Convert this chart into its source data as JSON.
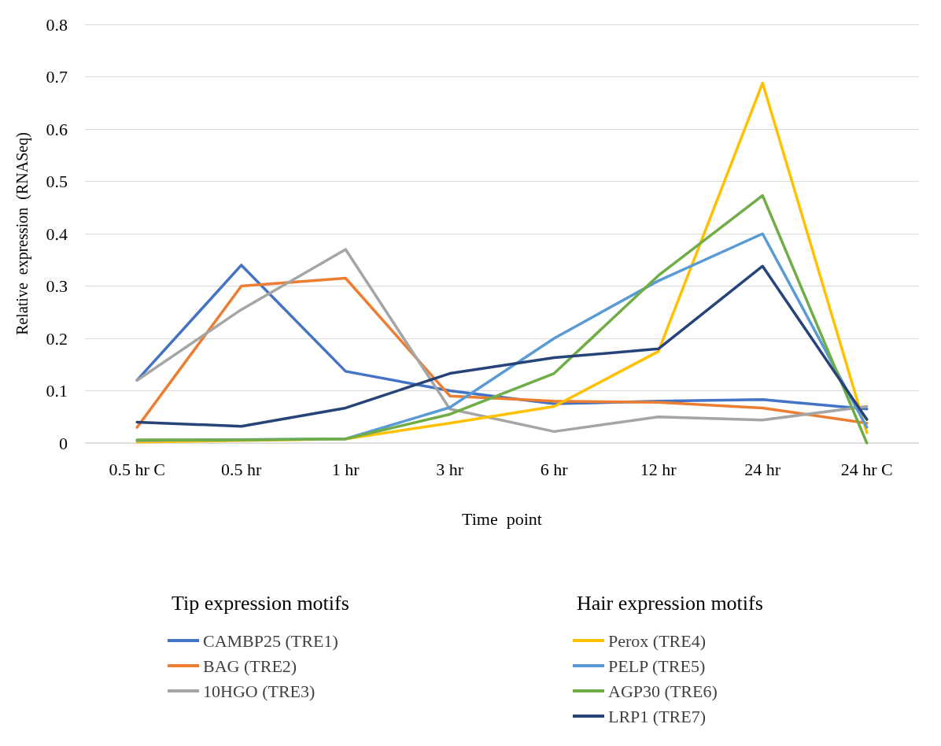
{
  "chart_data": {
    "type": "line",
    "xlabel": "Time  point",
    "ylabel": "Relative  expression  (RNASeq)",
    "categories": [
      "0.5 hr C",
      "0.5 hr",
      "1 hr",
      "3 hr",
      "6 hr",
      "12 hr",
      "24 hr",
      "24 hr C"
    ],
    "series": [
      {
        "name": "CAMBP25 (TRE1)",
        "color": "#4472c4",
        "values": [
          0.12,
          0.34,
          0.137,
          0.1,
          0.075,
          0.08,
          0.083,
          0.065
        ]
      },
      {
        "name": "BAG (TRE2)",
        "color": "#ed7d31",
        "values": [
          0.03,
          0.3,
          0.315,
          0.09,
          0.08,
          0.078,
          0.067,
          0.038
        ]
      },
      {
        "name": "10HGO (TRE3)",
        "color": "#a5a5a5",
        "values": [
          0.12,
          0.255,
          0.37,
          0.065,
          0.022,
          0.05,
          0.044,
          0.07
        ]
      },
      {
        "name": "Perox (TRE4)",
        "color": "#ffc000",
        "values": [
          0.002,
          0.005,
          0.008,
          0.038,
          0.07,
          0.175,
          0.688,
          0.02
        ]
      },
      {
        "name": "PELP (TRE5)",
        "color": "#5b9bd5",
        "values": [
          0.005,
          null,
          0.008,
          0.068,
          0.2,
          0.31,
          0.4,
          0.03
        ]
      },
      {
        "name": "AGP30 (TRE6)",
        "color": "#70ad47",
        "values": [
          0.006,
          0.006,
          0.008,
          0.055,
          0.133,
          0.32,
          0.473,
          0.0
        ]
      },
      {
        "name": "LRP1 (TRE7)",
        "color": "#264478",
        "values": [
          0.04,
          0.032,
          0.067,
          0.133,
          0.163,
          0.18,
          0.338,
          0.045
        ]
      }
    ],
    "ylim": [
      0,
      0.8
    ],
    "yticks": [
      0,
      0.1,
      0.2,
      0.3,
      0.4,
      0.5,
      0.6,
      0.7,
      0.8
    ],
    "grid": "y",
    "legend": "bottom",
    "marker": "none",
    "line_style": "solid",
    "annotations": [
      "Tip expression motifs",
      "Hair expression motifs"
    ]
  }
}
